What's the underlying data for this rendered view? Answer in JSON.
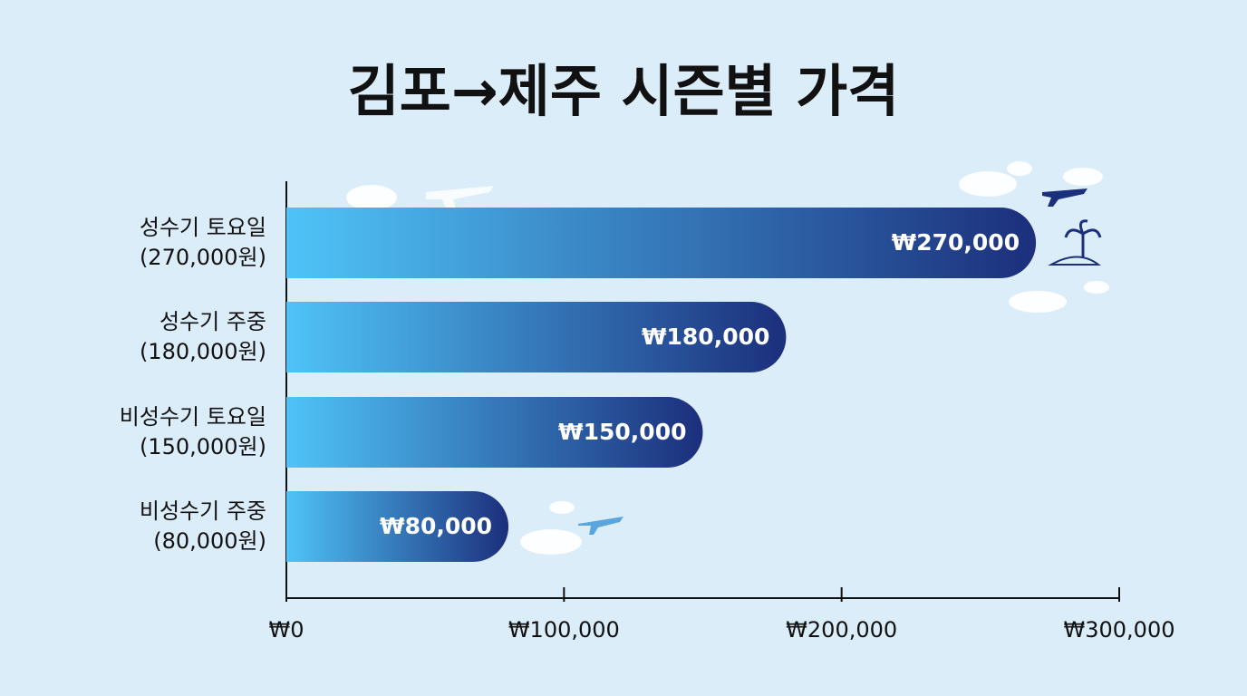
{
  "chart_data": {
    "type": "hbar",
    "title": "김포→제주 시즌별 가격",
    "categories": [
      [
        "성수기 토요일",
        "(270,000원)"
      ],
      [
        "성수기 주중",
        "(180,000원)"
      ],
      [
        "비성수기 토요일",
        "(150,000원)"
      ],
      [
        "비성수기 주중",
        "(80,000원)"
      ]
    ],
    "values": [
      270000,
      180000,
      150000,
      80000
    ],
    "value_labels": [
      "₩270,000",
      "₩180,000",
      "₩150,000",
      "₩80,000"
    ],
    "gradient": [
      "#4fc3f7",
      "#1c2f7c"
    ],
    "xlim": [
      0,
      300000
    ],
    "xticks": [
      {
        "value": 0,
        "label": "₩0"
      },
      {
        "value": 100000,
        "label": "₩100,000"
      },
      {
        "value": 200000,
        "label": "₩200,000"
      },
      {
        "value": 300000,
        "label": "₩300,000"
      }
    ]
  }
}
